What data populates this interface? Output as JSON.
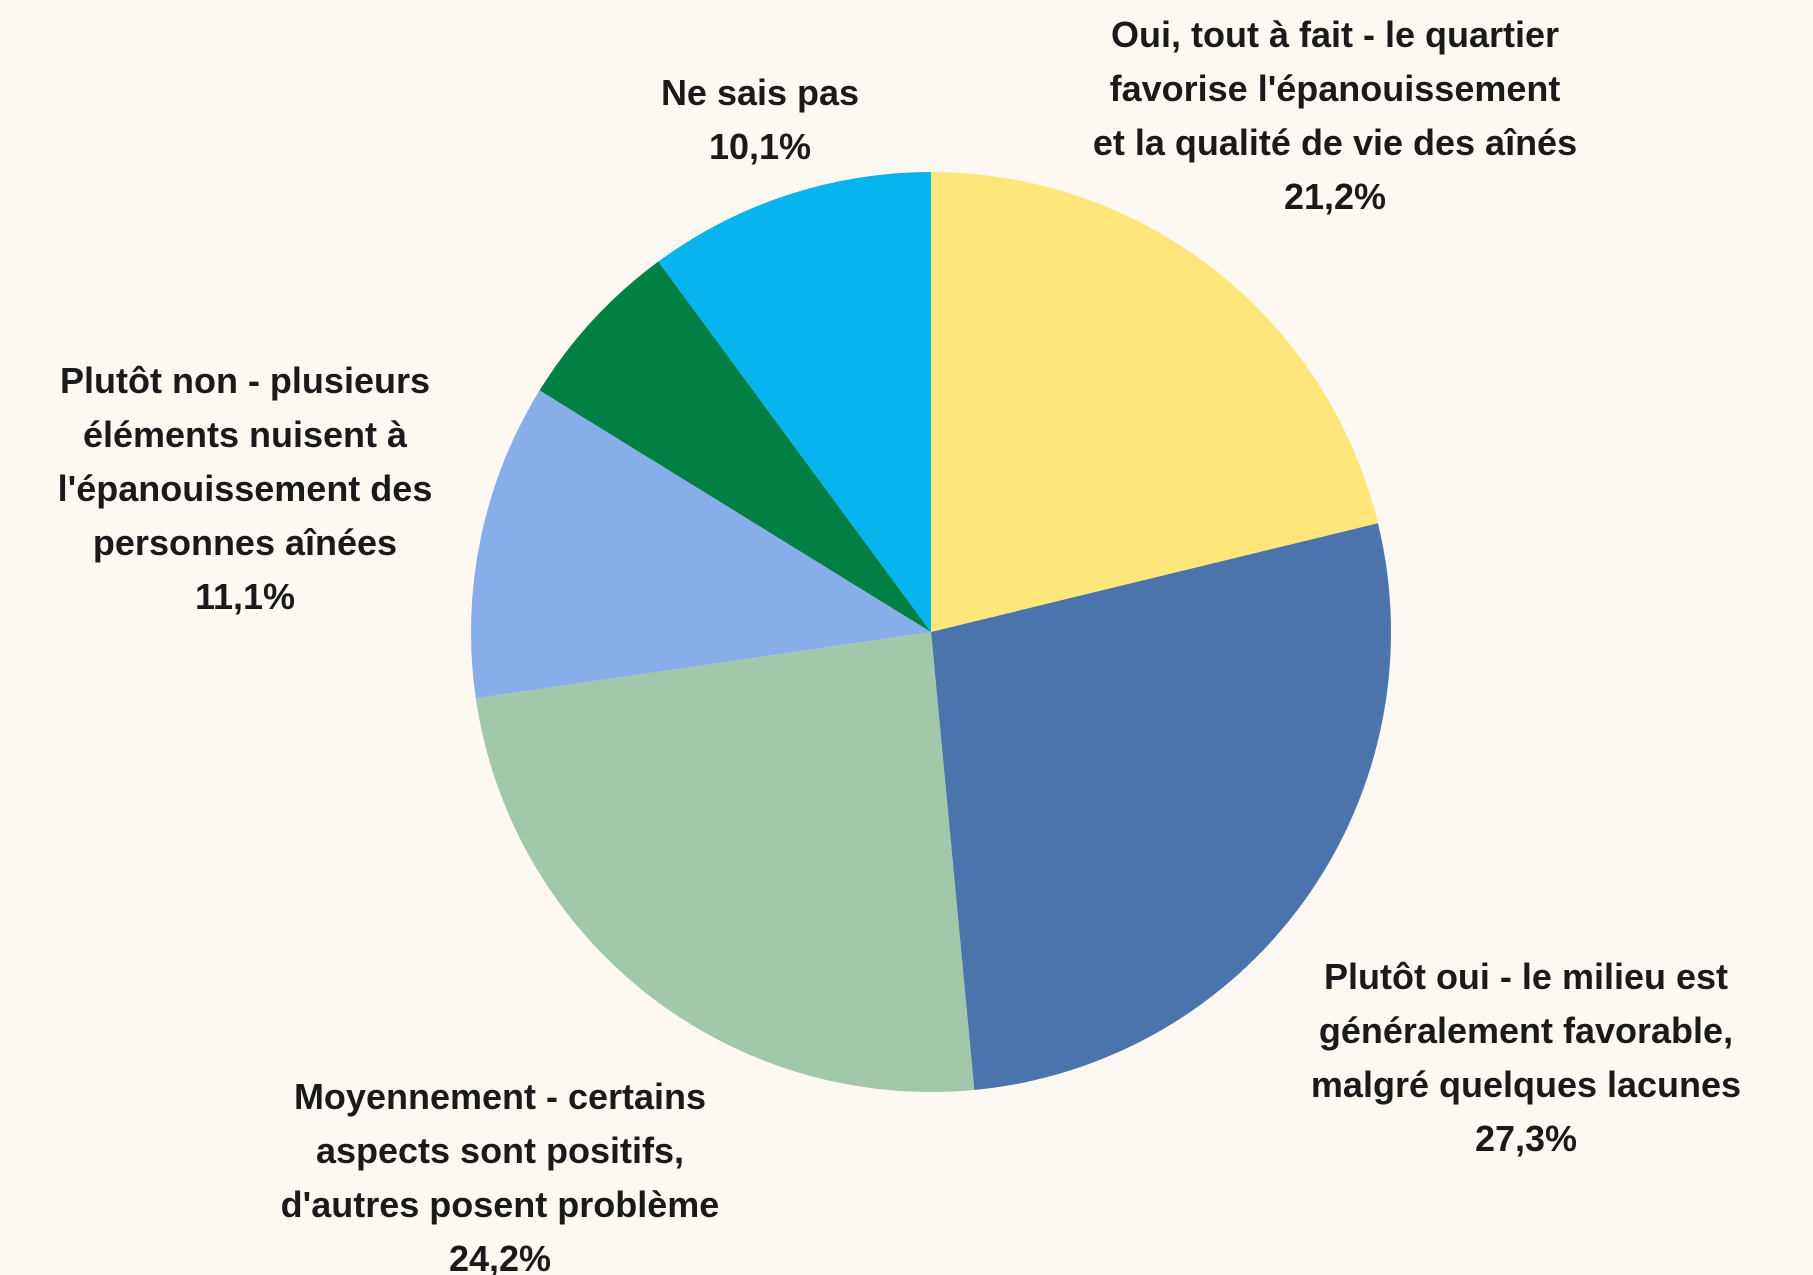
{
  "chart_data": {
    "type": "pie",
    "categories": [
      "Oui, tout à fait - le quartier favorise l'épanouissement et la qualité de vie des aînés",
      "Plutôt oui - le milieu est généralement favorable, malgré quelques lacunes",
      "Moyennement - certains aspects sont positifs, d'autres posent problème",
      "Plutôt non - plusieurs éléments nuisent à l'épanouissement des personnes aînées",
      null,
      "Ne sais pas"
    ],
    "values": [
      21.2,
      27.3,
      24.2,
      11.1,
      6.1,
      10.1
    ],
    "value_labels": [
      "21,2%",
      "27,3%",
      "24,2%",
      "11,1%",
      null,
      "10,1%"
    ],
    "colors": [
      "#ffe67a",
      "#4c74ac",
      "#a1c8aa",
      "#88aeea",
      "#008044",
      "#07b4ee"
    ]
  }
}
